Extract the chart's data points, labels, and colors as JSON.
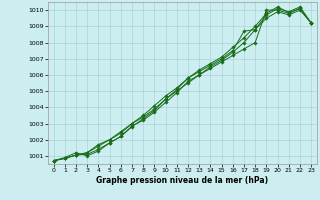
{
  "title": "Graphe pression niveau de la mer (hPa)",
  "bg_color": "#cceef0",
  "grid_color": "#aad4d8",
  "line_color": "#1a6e1a",
  "xlim": [
    -0.5,
    23.5
  ],
  "ylim": [
    1000.5,
    1010.5
  ],
  "yticks": [
    1001,
    1002,
    1003,
    1004,
    1005,
    1006,
    1007,
    1008,
    1009,
    1010
  ],
  "xticks": [
    0,
    1,
    2,
    3,
    4,
    5,
    6,
    7,
    8,
    9,
    10,
    11,
    12,
    13,
    14,
    15,
    16,
    17,
    18,
    19,
    20,
    21,
    22,
    23
  ],
  "series": [
    [
      1000.7,
      1000.85,
      1001.05,
      1001.2,
      1001.6,
      1002.0,
      1002.5,
      1003.0,
      1003.4,
      1003.9,
      1004.5,
      1005.0,
      1005.5,
      1006.0,
      1006.4,
      1006.8,
      1007.2,
      1007.6,
      1008.0,
      1010.0,
      1010.0,
      1009.8,
      1010.1,
      1009.2
    ],
    [
      1000.7,
      1000.85,
      1001.05,
      1001.1,
      1001.4,
      1001.8,
      1002.2,
      1002.85,
      1003.2,
      1003.7,
      1004.3,
      1004.9,
      1005.6,
      1006.0,
      1006.5,
      1006.9,
      1007.4,
      1008.0,
      1008.8,
      1009.7,
      1010.1,
      1009.9,
      1010.2,
      1009.2
    ],
    [
      1000.7,
      1000.85,
      1001.05,
      1001.2,
      1001.7,
      1002.0,
      1002.4,
      1003.0,
      1003.5,
      1004.1,
      1004.7,
      1005.2,
      1005.8,
      1006.2,
      1006.6,
      1007.0,
      1007.5,
      1008.7,
      1008.8,
      1009.5,
      1009.9,
      1009.7,
      1010.0,
      1009.2
    ],
    [
      1000.7,
      1000.9,
      1001.2,
      1001.0,
      1001.3,
      1001.8,
      1002.2,
      1002.8,
      1003.3,
      1003.8,
      1004.5,
      1005.1,
      1005.8,
      1006.3,
      1006.7,
      1007.1,
      1007.7,
      1008.3,
      1009.0,
      1009.8,
      1010.2,
      1009.85,
      1010.1,
      1009.2
    ]
  ]
}
